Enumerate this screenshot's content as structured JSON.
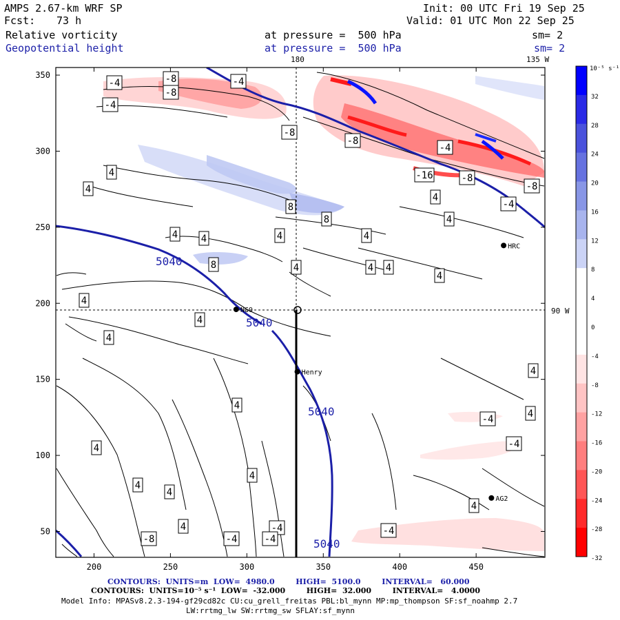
{
  "header": {
    "model": "AMPS 2.67-km WRF SP",
    "fcst_label": "Fcst:",
    "fcst_value": "73 h",
    "init": "Init: 00 UTC Fri 19 Sep 25",
    "valid": "Valid: 01 UTC Mon 22 Sep 25",
    "field1_name": "Relative vorticity",
    "field1_level": "at pressure =  500 hPa",
    "field1_sm": "sm= 2",
    "field2_name": "Geopotential height",
    "field2_level": "at pressure =  500 hPa",
    "field2_sm": "sm= 2"
  },
  "chart_data": {
    "type": "contour-map",
    "title": "Relative vorticity and Geopotential height at 500 hPa",
    "x_ticks": [
      "200",
      "250",
      "300",
      "350",
      "400",
      "450"
    ],
    "x_tick_values": [
      200,
      250,
      300,
      350,
      400,
      450
    ],
    "y_ticks": [
      "50",
      "100",
      "150",
      "200",
      "250",
      "300",
      "350"
    ],
    "y_tick_values": [
      50,
      100,
      150,
      200,
      250,
      300,
      350
    ],
    "xlim": [
      175,
      495
    ],
    "ylim": [
      33,
      355
    ],
    "meridian_labels": [
      "180",
      "135 W",
      "90 W"
    ],
    "colorbar": {
      "unit_label": "10⁻⁵ s⁻¹",
      "levels": [
        32,
        28,
        24,
        20,
        16,
        12,
        8,
        4,
        0,
        -4,
        -8,
        -12,
        -16,
        -20,
        -24,
        -28,
        -32
      ],
      "colors": [
        "#0000ff",
        "#2a2ae6",
        "#4a52dc",
        "#6672e0",
        "#8896e6",
        "#a8b4ee",
        "#cbd3f6",
        "#ffffff",
        "#ffffff",
        "#ffffff",
        "#ffe4e4",
        "#ffc4c4",
        "#ffa2a2",
        "#ff7e7e",
        "#ff5656",
        "#ff2a2a",
        "#ff0000"
      ]
    },
    "stations": [
      {
        "name": "HRC",
        "x": 468,
        "y": 238
      },
      {
        "name": "NGO",
        "x": 293,
        "y": 196
      },
      {
        "name": "Henry",
        "x": 333,
        "y": 155
      },
      {
        "name": "AG2",
        "x": 460,
        "y": 72
      }
    ],
    "geopotential_contours": [
      {
        "label": "5040",
        "value": 5040
      }
    ],
    "vorticity_labels": [
      "-8",
      "-4",
      "-4",
      "-4",
      "-8",
      "-8",
      "-8",
      "-4",
      "-16",
      "-8",
      "-8",
      "-4",
      "4",
      "4",
      "8",
      "8",
      "4",
      "4",
      "4",
      "4",
      "8",
      "4",
      "4",
      "4",
      "4",
      "4",
      "4",
      "4",
      "4",
      "4",
      "4",
      "4",
      "4",
      "4",
      "4",
      "4",
      "4",
      "-4",
      "4",
      "-4",
      "4",
      "-4"
    ]
  },
  "footer": {
    "line1": "CONTOURS:  UNITS=m  LOW=  4980.0        HIGH=  5100.0        INTERVAL=   60.000",
    "line2": "CONTOURS:  UNITS=10⁻⁵ s⁻¹  LOW=  -32.000        HIGH=  32.000        INTERVAL=   4.0000",
    "line3": "Model Info: MPASv8.2.3-194-gf29cd82c CU:cu_grell_freitas PBL:bl_mynn MP:mp_thompson SF:sf_noahmp 2.7",
    "line4": "LW:rrtmg_lw SW:rrtmg_sw SFLAY:sf_mynn"
  },
  "colors": {
    "height_contour": "#1b1fa8",
    "label_blue": "#1b1fa8"
  }
}
